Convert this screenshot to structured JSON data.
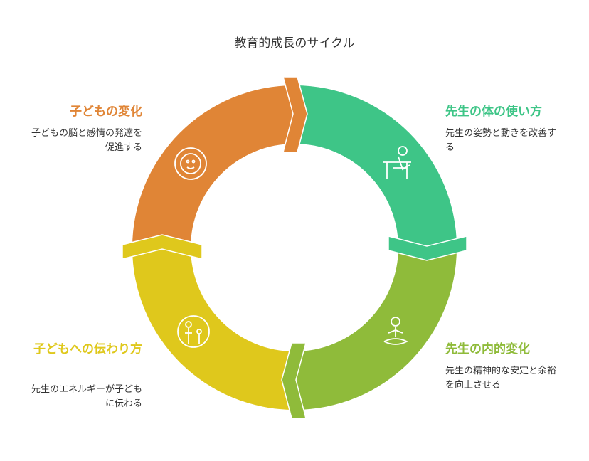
{
  "title": "教育的成長のサイクル",
  "stages": [
    {
      "title": "先生の体の使い方",
      "description": "先生の姿勢と動きを改善する"
    },
    {
      "title": "先生の内的変化",
      "description": "先生の精神的な安定と余裕を向上させる"
    },
    {
      "title": "子どもへの伝わり方",
      "description": "先生のエネルギーが子どもに伝わる"
    },
    {
      "title": "子どもの変化",
      "description": "子どもの脳と感情の発達を促進する"
    }
  ]
}
